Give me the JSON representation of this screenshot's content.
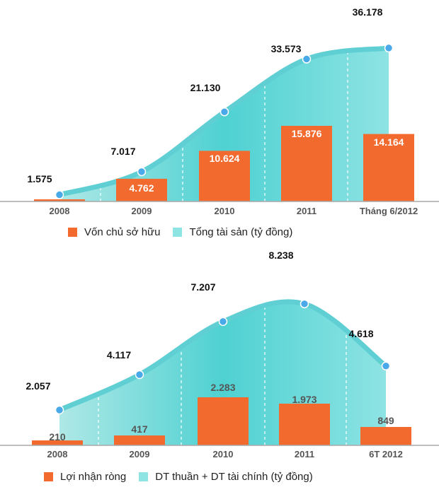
{
  "chart_data": [
    {
      "type": "bar+area",
      "categories": [
        "2008",
        "2009",
        "2010",
        "2011",
        "Tháng 6/2012"
      ],
      "series": [
        {
          "name": "Vốn chủ sở hữu",
          "kind": "bar",
          "values": [
            null,
            4.762,
            10.624,
            15.876,
            14.164
          ],
          "labels": [
            "",
            "4.762",
            "10.624",
            "15.876",
            "14.164"
          ],
          "color": "#f26a2e"
        },
        {
          "name": "Tổng tài sản (tỷ đồng)",
          "kind": "area",
          "values": [
            1.575,
            7.017,
            21.13,
            33.573,
            36.178
          ],
          "labels": [
            "1.575",
            "7.017",
            "21.130",
            "33.573",
            "36.178"
          ],
          "color": "#7fe0e0"
        }
      ],
      "ylim": [
        0,
        40
      ],
      "legend": [
        {
          "label": "Vốn chủ sở hữu",
          "color": "#f26a2e"
        },
        {
          "label": "Tổng tài sản (tỷ đồng)",
          "color": "#8ee3e3"
        }
      ]
    },
    {
      "type": "bar+area",
      "categories": [
        "2008",
        "2009",
        "2010",
        "2011",
        "6T 2012"
      ],
      "series": [
        {
          "name": "Lợi nhận ròng",
          "kind": "bar",
          "values": [
            210,
            417,
            2283,
            1973,
            849
          ],
          "labels": [
            "210",
            "417",
            "2.283",
            "1.973",
            "849"
          ],
          "color": "#f26a2e"
        },
        {
          "name": "DT thuần + DT tài chính (tỷ đồng)",
          "kind": "area",
          "values": [
            2057,
            4117,
            7207,
            8238,
            4618
          ],
          "labels": [
            "2.057",
            "4.117",
            "7.207",
            "8.238",
            "4.618"
          ],
          "color": "#7fe0e0"
        }
      ],
      "ylim": [
        0,
        10000
      ],
      "legend": [
        {
          "label": "Lợi nhận ròng",
          "color": "#f26a2e"
        },
        {
          "label": "DT thuần + DT tài chính (tỷ đồng)",
          "color": "#8ee3e3"
        }
      ]
    }
  ]
}
